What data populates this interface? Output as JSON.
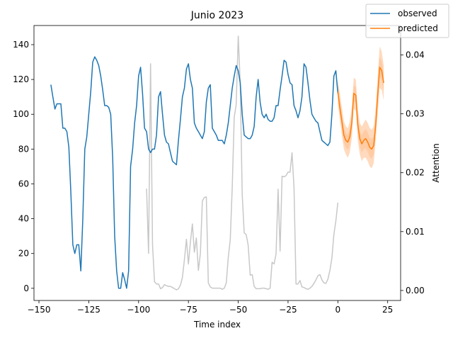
{
  "chart_data": {
    "type": "line",
    "title": "Junio 2023",
    "xlabel": "Time index",
    "ylabel": "",
    "y2label": "Attention",
    "xlim": [
      -152.5,
      31.5
    ],
    "ylim": [
      -7,
      151
    ],
    "y2lim": [
      -0.0017,
      0.045
    ],
    "x_ticks": [
      -150,
      -125,
      -100,
      -75,
      -50,
      -25,
      0,
      25
    ],
    "y_ticks": [
      0,
      20,
      40,
      60,
      80,
      100,
      120,
      140
    ],
    "y2_ticks": [
      "0.00",
      "0.01",
      "0.02",
      "0.03",
      "0.04"
    ],
    "grid": false,
    "legend_position": "top-right",
    "colors": {
      "observed": "#1f77b4",
      "predicted": "#ff7f0e",
      "attention": "#c8c8c8",
      "band": "#ffbb88"
    },
    "series": [
      {
        "name": "observed",
        "x": [
          -144,
          -143,
          -142,
          -141,
          -140,
          -139,
          -138,
          -137,
          -136,
          -135,
          -134,
          -133,
          -132,
          -131,
          -130,
          -129,
          -128,
          -127,
          -126,
          -125,
          -124,
          -123,
          -122,
          -121,
          -120,
          -119,
          -118,
          -117,
          -116,
          -115,
          -114,
          -113,
          -112,
          -111,
          -110,
          -109,
          -108,
          -107,
          -106,
          -105,
          -104,
          -103,
          -102,
          -101,
          -100,
          -99,
          -98,
          -97,
          -96,
          -95,
          -94,
          -93,
          -92,
          -91,
          -90,
          -89,
          -88,
          -87,
          -86,
          -85,
          -84,
          -83,
          -82,
          -81,
          -80,
          -79,
          -78,
          -77,
          -76,
          -75,
          -74,
          -73,
          -72,
          -71,
          -70,
          -69,
          -68,
          -67,
          -66,
          -65,
          -64,
          -63,
          -62,
          -61,
          -60,
          -59,
          -58,
          -57,
          -56,
          -55,
          -54,
          -53,
          -52,
          -51,
          -50,
          -49,
          -48,
          -47,
          -46,
          -45,
          -44,
          -43,
          -42,
          -41,
          -40,
          -39,
          -38,
          -37,
          -36,
          -35,
          -34,
          -33,
          -32,
          -31,
          -30,
          -29,
          -28,
          -27,
          -26,
          -25,
          -24,
          -23,
          -22,
          -21,
          -20,
          -19,
          -18,
          -17,
          -16,
          -15,
          -14,
          -13,
          -12,
          -11,
          -10,
          -9,
          -8,
          -7,
          -6,
          -5,
          -4,
          -3,
          -2,
          -1,
          0
        ],
        "values": [
          117,
          110,
          103,
          106,
          106,
          106,
          92,
          92,
          90,
          81,
          55,
          25,
          20,
          25,
          25,
          10,
          40,
          80,
          87,
          100,
          113,
          130,
          133,
          131,
          128,
          122,
          114,
          105,
          105,
          104,
          100,
          75,
          30,
          10,
          0,
          0,
          9,
          5,
          0,
          10,
          70,
          80,
          95,
          105,
          122,
          127,
          112,
          92,
          90,
          80,
          78,
          80,
          80,
          88,
          110,
          113,
          100,
          88,
          84,
          83,
          78,
          73,
          72,
          71,
          85,
          97,
          110,
          115,
          126,
          129,
          120,
          115,
          95,
          92,
          90,
          88,
          86,
          90,
          107,
          115,
          117,
          92,
          90,
          88,
          85,
          85,
          85,
          83,
          88,
          95,
          105,
          115,
          122,
          128,
          125,
          118,
          100,
          88,
          87,
          86,
          86,
          88,
          93,
          110,
          120,
          107,
          100,
          98,
          100,
          97,
          96,
          96,
          98,
          105,
          105,
          114,
          122,
          131,
          130,
          123,
          118,
          117,
          105,
          102,
          98,
          102,
          110,
          129,
          127,
          118,
          108,
          100,
          98,
          96,
          95,
          90,
          85,
          84,
          83,
          82,
          84,
          100,
          122,
          125,
          112
        ]
      },
      {
        "name": "predicted",
        "x": [
          0,
          1,
          2,
          3,
          4,
          5,
          6,
          7,
          8,
          9,
          10,
          11,
          12,
          13,
          14,
          15,
          16,
          17,
          18,
          19,
          20,
          21,
          22,
          23
        ],
        "values": [
          113,
          104,
          96,
          88,
          85,
          84,
          87,
          95,
          112,
          111,
          94,
          86,
          83,
          85,
          86,
          84,
          81,
          80,
          82,
          94,
          111,
          127,
          125,
          118
        ],
        "lower": [
          106,
          97,
          88,
          80,
          77,
          75,
          78,
          86,
          103,
          102,
          85,
          77,
          73,
          75,
          75,
          73,
          70,
          69,
          72,
          85,
          100,
          115,
          114,
          108
        ],
        "upper": [
          120,
          112,
          104,
          96,
          93,
          92,
          96,
          104,
          121,
          120,
          103,
          95,
          93,
          95,
          97,
          95,
          92,
          91,
          93,
          104,
          122,
          139,
          136,
          128
        ]
      },
      {
        "name": "attention",
        "axis": "right",
        "x": [
          -96,
          -95,
          -94,
          -93,
          -92,
          -91,
          -90,
          -89,
          -88,
          -87,
          -86,
          -85,
          -84,
          -83,
          -82,
          -81,
          -80,
          -79,
          -78,
          -77,
          -76,
          -75,
          -74,
          -73,
          -72,
          -71,
          -70,
          -69,
          -68,
          -67,
          -66,
          -65,
          -64,
          -63,
          -62,
          -61,
          -60,
          -59,
          -58,
          -57,
          -56,
          -55,
          -54,
          -53,
          -52,
          -51,
          -50,
          -49,
          -48,
          -47,
          -46,
          -45,
          -44,
          -43,
          -42,
          -41,
          -40,
          -39,
          -38,
          -37,
          -36,
          -35,
          -34,
          -33,
          -32,
          -31,
          -30,
          -29,
          -28,
          -27,
          -26,
          -25,
          -24,
          -23,
          -22,
          -21,
          -20,
          -19,
          -18,
          -17,
          -16,
          -15,
          -14,
          -13,
          -12,
          -11,
          -10,
          -9,
          -8,
          -7,
          -6,
          -5,
          -4,
          -3,
          -2,
          -1,
          0
        ],
        "values": [
          0.0173,
          0.0063,
          0.0385,
          0.0077,
          0.0015,
          0.0011,
          0.0011,
          0.0003,
          0.0005,
          0.001,
          0.0008,
          0.0007,
          0.0007,
          0.0005,
          0.0003,
          0.0001,
          0.0003,
          0.0009,
          0.0022,
          0.0052,
          0.0087,
          0.0045,
          0.0082,
          0.0113,
          0.0065,
          0.0089,
          0.0034,
          0.0063,
          0.0152,
          0.0158,
          0.0159,
          0.0013,
          0.0006,
          0.0004,
          0.0004,
          0.0004,
          0.0004,
          0.0004,
          0.0002,
          0.0004,
          0.0013,
          0.0056,
          0.0086,
          0.0175,
          0.0294,
          0.0316,
          0.0432,
          0.0352,
          0.0163,
          0.0098,
          0.0095,
          0.0077,
          0.0026,
          0.0027,
          0.0007,
          0.0003,
          0.0003,
          0.0003,
          0.0004,
          0.0004,
          0.0003,
          0.0002,
          0.0004,
          0.0048,
          0.0045,
          0.0062,
          0.0172,
          0.0067,
          0.0194,
          0.0193,
          0.0195,
          0.0201,
          0.0201,
          0.0234,
          0.0174,
          0.0011,
          0.0011,
          0.0017,
          0.0006,
          0.0005,
          0.0003,
          0.0002,
          0.0004,
          0.0007,
          0.0012,
          0.0018,
          0.0025,
          0.0027,
          0.0018,
          0.0013,
          0.0012,
          0.0019,
          0.0034,
          0.0055,
          0.0095,
          0.0118,
          0.0149
        ]
      }
    ]
  }
}
